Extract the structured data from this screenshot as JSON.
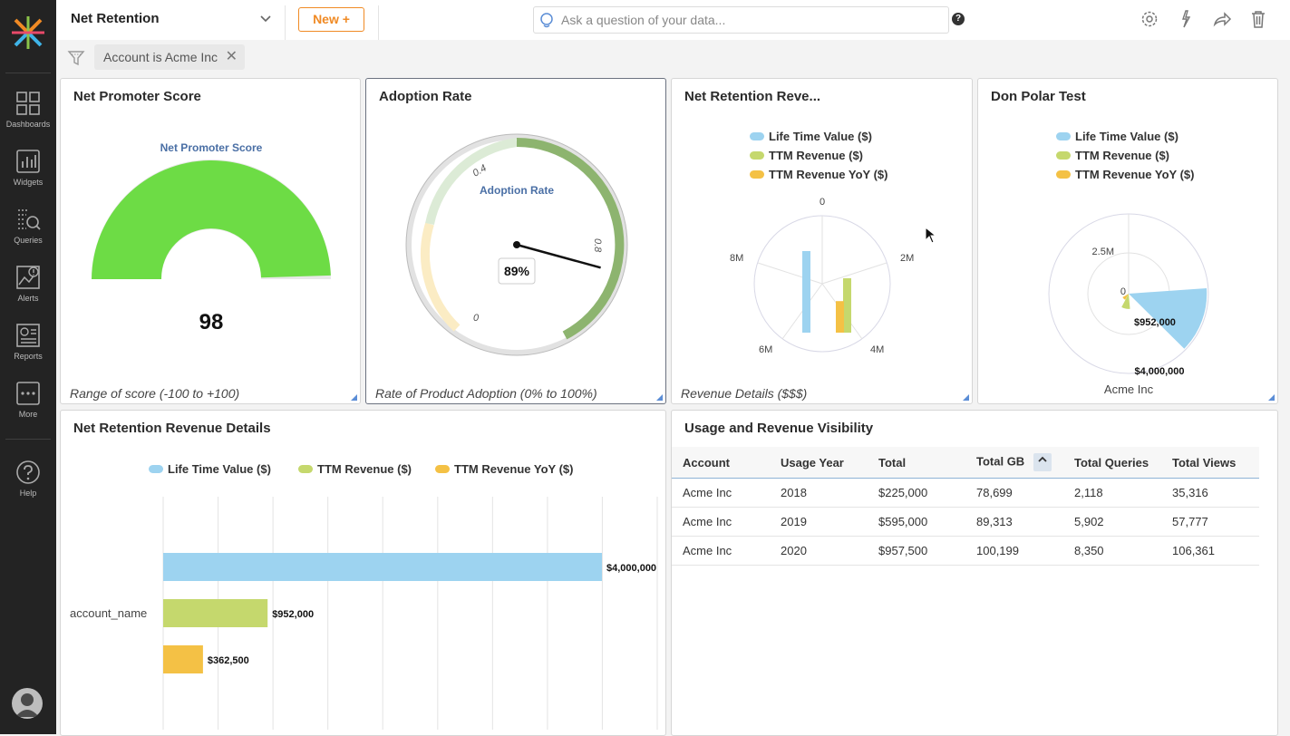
{
  "nav": {
    "items": [
      {
        "label": "Dashboards",
        "icon": "dashboards-icon"
      },
      {
        "label": "Widgets",
        "icon": "widgets-icon"
      },
      {
        "label": "Queries",
        "icon": "queries-icon"
      },
      {
        "label": "Alerts",
        "icon": "alerts-icon"
      },
      {
        "label": "Reports",
        "icon": "reports-icon"
      },
      {
        "label": "More",
        "icon": "more-icon"
      },
      {
        "label": "Help",
        "icon": "help-icon"
      }
    ]
  },
  "header": {
    "title": "Net Retention",
    "new_button": "New +",
    "ask_placeholder": "Ask a question of your data...",
    "help": "?"
  },
  "filter": {
    "chip": "Account is Acme Inc"
  },
  "colors": {
    "ltv": "#9dd3f0",
    "ttm": "#c5d86d",
    "yoy": "#f4c145",
    "gauge_green": "#6ddc45",
    "accent": "#f08a24"
  },
  "widgets": {
    "nps": {
      "title": "Net Promoter Score",
      "chart_title": "Net Promoter Score",
      "value": "98",
      "footer": "Range of score (-100 to +100)"
    },
    "adoption": {
      "title": "Adoption Rate",
      "chart_title": "Adoption Rate",
      "value_label": "89%",
      "tick_0": "0",
      "tick_04": "0.4",
      "tick_08": "0.8",
      "footer": "Rate of Product Adoption (0% to 100%)"
    },
    "polar1": {
      "title": "Net Retention Reve...",
      "ticks": {
        "t0": "0",
        "t2": "2M",
        "t4": "4M",
        "t6": "6M",
        "t8": "8M"
      },
      "footer": "Revenue Details ($$$)"
    },
    "polar2": {
      "title": "Don Polar Test",
      "ticks": {
        "t0": "0",
        "t25": "2.5M"
      },
      "label_952": "$952,000",
      "label_4m": "$4,000,000",
      "xlabel": "Acme Inc"
    },
    "barh": {
      "title": "Net Retention Revenue Details",
      "category": "account_name"
    },
    "table": {
      "title": "Usage and Revenue Visibility",
      "columns": [
        "Account",
        "Usage Year",
        "Total",
        "Total GB",
        "Total Queries",
        "Total Views"
      ],
      "rows": [
        [
          "Acme Inc",
          "2018",
          "$225,000",
          "78,699",
          "2,118",
          "35,316"
        ],
        [
          "Acme Inc",
          "2019",
          "$595,000",
          "89,313",
          "5,902",
          "57,777"
        ],
        [
          "Acme Inc",
          "2020",
          "$957,500",
          "100,199",
          "8,350",
          "106,361"
        ]
      ]
    }
  },
  "legend": [
    "Life Time Value ($)",
    "TTM Revenue ($)",
    "TTM Revenue YoY ($)"
  ],
  "chart_data": [
    {
      "type": "gauge",
      "title": "Net Promoter Score",
      "value": 98,
      "range": [
        -100,
        100
      ]
    },
    {
      "type": "gauge",
      "title": "Adoption Rate",
      "value": 0.89,
      "range": [
        0,
        1
      ],
      "tick_labels": [
        "0",
        "0.4",
        "0.8"
      ]
    },
    {
      "type": "bar",
      "subtype": "polar",
      "categories": [
        "Acme Inc"
      ],
      "series": [
        {
          "name": "Life Time Value ($)",
          "values": [
            4000000
          ]
        },
        {
          "name": "TTM Revenue ($)",
          "values": [
            952000
          ]
        },
        {
          "name": "TTM Revenue YoY ($)",
          "values": [
            362500
          ]
        }
      ],
      "tick_labels": [
        "0",
        "2M",
        "4M",
        "6M",
        "8M"
      ]
    },
    {
      "type": "pie",
      "subtype": "polar",
      "categories": [
        "Acme Inc"
      ],
      "series": [
        {
          "name": "Life Time Value ($)",
          "values": [
            4000000
          ]
        },
        {
          "name": "TTM Revenue ($)",
          "values": [
            952000
          ]
        },
        {
          "name": "TTM Revenue YoY ($)",
          "values": [
            362500
          ]
        }
      ],
      "tick_labels": [
        "0",
        "2.5M"
      ],
      "data_labels": [
        "$952,000",
        "$4,000,000"
      ],
      "xlabel": "Acme Inc"
    },
    {
      "type": "bar",
      "orientation": "horizontal",
      "categories": [
        "account_name"
      ],
      "series": [
        {
          "name": "Life Time Value ($)",
          "values": [
            4000000
          ]
        },
        {
          "name": "TTM Revenue ($)",
          "values": [
            952000
          ]
        },
        {
          "name": "TTM Revenue YoY ($)",
          "values": [
            362500
          ]
        }
      ],
      "data_labels": [
        "$4,000,000",
        "$952,000",
        "$362,500"
      ],
      "xlim": [
        0,
        4500000
      ],
      "grid": true,
      "legend": "top"
    }
  ]
}
